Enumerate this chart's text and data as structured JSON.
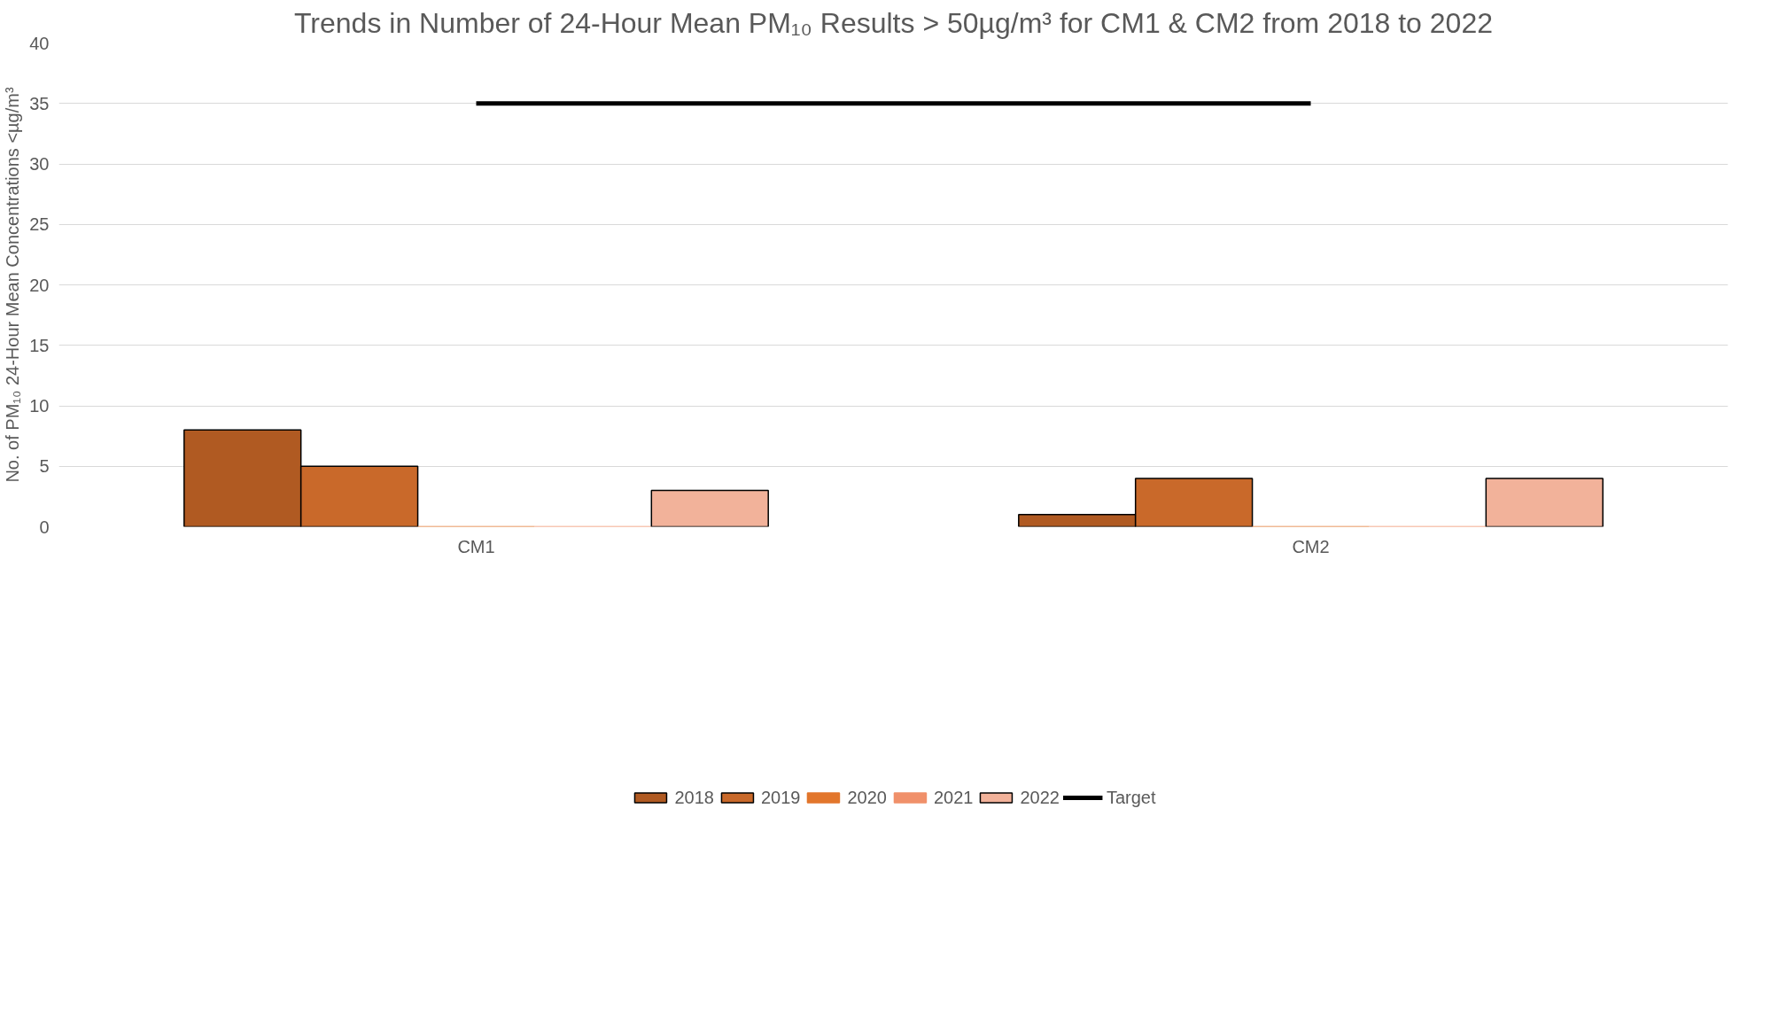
{
  "chart_data": {
    "type": "bar",
    "title": "Trends in Number of 24-Hour Mean PM₁₀ Results > 50µg/m³ for CM1 & CM2 from 2018 to 2022",
    "ylabel": "No. of PM₁₀ 24-Hour Mean Concentrations <µg/m³",
    "categories": [
      "CM1",
      "CM2"
    ],
    "series": [
      {
        "name": "2018",
        "color": "#b05a22",
        "values": [
          8,
          1
        ]
      },
      {
        "name": "2019",
        "color": "#c9692a",
        "values": [
          5,
          4
        ]
      },
      {
        "name": "2020",
        "color": "#e2762c",
        "values": [
          0,
          0
        ]
      },
      {
        "name": "2021",
        "color": "#f0906a",
        "values": [
          0,
          0
        ]
      },
      {
        "name": "2022",
        "color": "#f2b29a",
        "values": [
          3,
          4
        ]
      },
      {
        "name": "Target",
        "type": "line",
        "color": "#000000",
        "values": [
          35,
          35
        ]
      }
    ],
    "ylim": [
      0,
      40
    ],
    "yticks": [
      0,
      5,
      10,
      15,
      20,
      25,
      30,
      35,
      40
    ],
    "grid": "y",
    "legend": "bottom"
  }
}
